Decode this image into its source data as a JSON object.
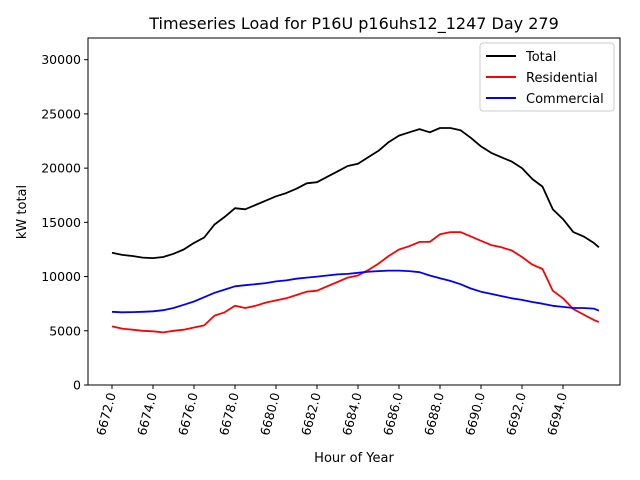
{
  "chart_data": {
    "type": "line",
    "title": "Timeseries Load for P16U p16uhs12_1247  Day 279",
    "xlabel": "Hour of Year",
    "ylabel": "kW total",
    "xlim": [
      6670.83,
      6696.78
    ],
    "ylim": [
      0,
      32000
    ],
    "xticks": [
      6672,
      6674,
      6676,
      6678,
      6680,
      6682,
      6684,
      6686,
      6688,
      6690,
      6692,
      6694
    ],
    "xtick_labels": [
      "6672.0",
      "6674.0",
      "6676.0",
      "6678.0",
      "6680.0",
      "6682.0",
      "6684.0",
      "6686.0",
      "6688.0",
      "6690.0",
      "6692.0",
      "6694.0"
    ],
    "yticks": [
      0,
      5000,
      10000,
      15000,
      20000,
      25000,
      30000
    ],
    "ytick_labels": [
      "0",
      "5000",
      "10000",
      "15000",
      "20000",
      "25000",
      "30000"
    ],
    "grid": false,
    "legend_position": "top-right",
    "x": [
      6672,
      6672.5,
      6673,
      6673.5,
      6674,
      6674.5,
      6675,
      6675.5,
      6676,
      6676.5,
      6677,
      6677.5,
      6678,
      6678.5,
      6679,
      6679.5,
      6680,
      6680.5,
      6681,
      6681.5,
      6682,
      6682.5,
      6683,
      6683.5,
      6684,
      6684.5,
      6685,
      6685.5,
      6686,
      6686.5,
      6687,
      6687.5,
      6688,
      6688.5,
      6689,
      6689.5,
      6690,
      6690.5,
      6691,
      6691.5,
      6692,
      6692.5,
      6693,
      6693.5,
      6694,
      6694.5,
      6695,
      6695.5,
      6695.75
    ],
    "series": [
      {
        "name": "Total",
        "color": "#000000",
        "values": [
          12200,
          12000,
          11900,
          11750,
          11700,
          11800,
          12100,
          12500,
          13100,
          13600,
          14800,
          15500,
          16300,
          16200,
          16600,
          17000,
          17400,
          17700,
          18100,
          18600,
          18700,
          19200,
          19700,
          20200,
          20400,
          21000,
          21600,
          22400,
          23000,
          23300,
          23600,
          23300,
          23700,
          23700,
          23500,
          22800,
          22000,
          21400,
          21000,
          20600,
          20000,
          19000,
          18300,
          16200,
          15300,
          14100,
          13700,
          13100,
          12700
        ]
      },
      {
        "name": "Residential",
        "color": "#ff0000",
        "values": [
          5400,
          5200,
          5100,
          5000,
          4950,
          4850,
          5000,
          5100,
          5300,
          5500,
          6400,
          6700,
          7300,
          7100,
          7300,
          7600,
          7800,
          8000,
          8300,
          8600,
          8700,
          9100,
          9500,
          9900,
          10100,
          10600,
          11200,
          11900,
          12500,
          12800,
          13200,
          13200,
          13900,
          14100,
          14100,
          13700,
          13300,
          12900,
          12700,
          12400,
          11800,
          11100,
          10700,
          8700,
          8000,
          7000,
          6500,
          6000,
          5800
        ]
      },
      {
        "name": "Commercial",
        "color": "#0000ff",
        "values": [
          6750,
          6700,
          6720,
          6750,
          6800,
          6900,
          7100,
          7400,
          7700,
          8100,
          8500,
          8800,
          9100,
          9200,
          9300,
          9400,
          9550,
          9650,
          9800,
          9900,
          10000,
          10100,
          10200,
          10250,
          10350,
          10450,
          10500,
          10550,
          10550,
          10500,
          10400,
          10100,
          9850,
          9600,
          9300,
          8900,
          8600,
          8400,
          8200,
          8000,
          7850,
          7650,
          7500,
          7300,
          7200,
          7100,
          7100,
          7050,
          6850
        ]
      }
    ]
  }
}
